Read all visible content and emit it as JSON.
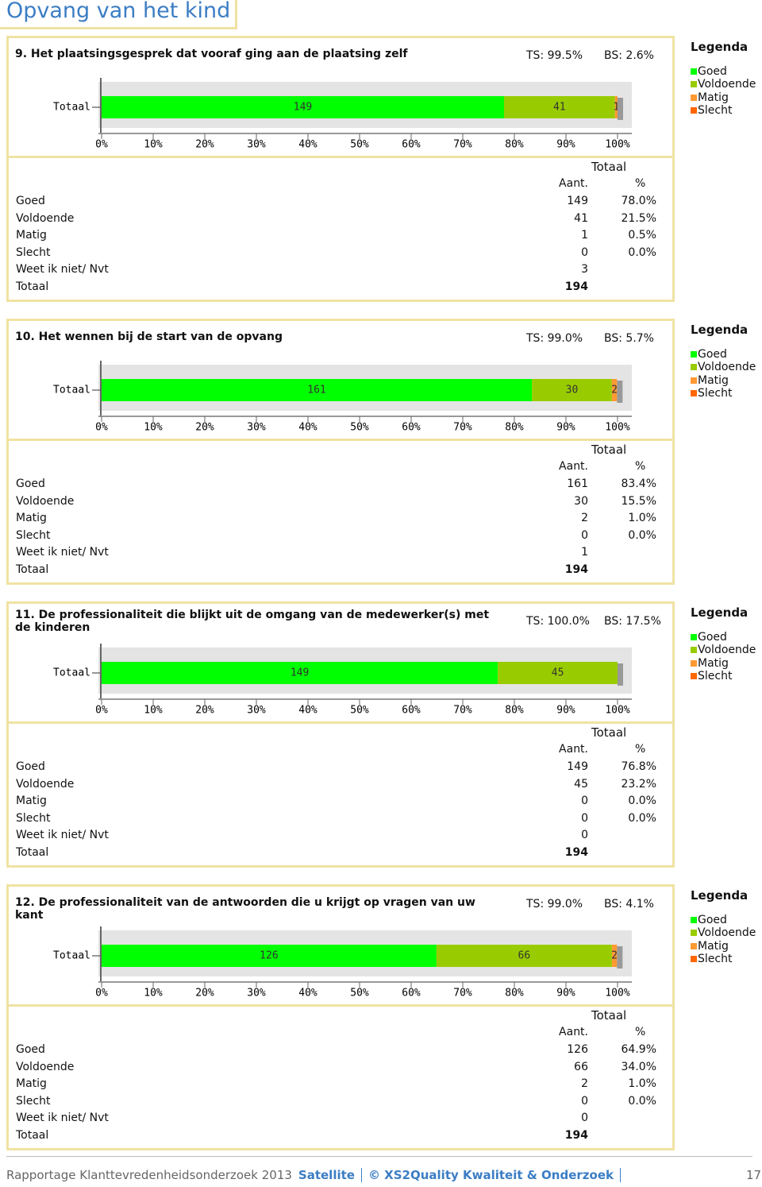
{
  "header": {
    "title": "Opvang van het kind"
  },
  "sections": [
    {
      "question": "9. Het plaatsingsgesprek dat vooraf ging aan de plaatsing zelf",
      "ts": "TS: 99.5%",
      "bs": "BS: 2.6%",
      "legend_title": "Legenda",
      "chart": {
        "type": "bar",
        "orientation": "horizontal",
        "stacked": true,
        "categories": [
          "Totaal"
        ],
        "series": [
          {
            "name": "Goed",
            "color": "#00ff00",
            "values": [
              78.0
            ]
          },
          {
            "name": "Voldoende",
            "color": "#99cc00",
            "values": [
              21.5
            ]
          },
          {
            "name": "Matig",
            "color": "#ff9933",
            "values": [
              0.5
            ]
          },
          {
            "name": "Slecht",
            "color": "#ff6600",
            "values": [
              0.0
            ]
          }
        ],
        "xlim": [
          0,
          100
        ],
        "xticks": [
          {
            "value": 0,
            "label": "0%"
          },
          {
            "value": 10,
            "label": "10%"
          },
          {
            "value": 20,
            "label": "20%"
          },
          {
            "value": 30,
            "label": "30%"
          },
          {
            "value": 40,
            "label": "40%"
          },
          {
            "value": 50,
            "label": "50%"
          },
          {
            "value": 60,
            "label": "60%"
          },
          {
            "value": 70,
            "label": "70%"
          },
          {
            "value": 80,
            "label": "80%"
          },
          {
            "value": 90,
            "label": "90%"
          },
          {
            "value": 100,
            "label": "100%"
          }
        ]
      },
      "table": {
        "group": "Totaal",
        "columns": [
          "Aant.",
          "%"
        ],
        "rows": [
          [
            "Goed",
            149,
            "78.0%"
          ],
          [
            "Voldoende",
            41,
            "21.5%"
          ],
          [
            "Matig",
            1,
            "0.5%"
          ],
          [
            "Slecht",
            0,
            "0.0%"
          ],
          [
            "Weet ik niet/ Nvt",
            3
          ],
          [
            "Totaal",
            194
          ]
        ]
      }
    },
    {
      "question": "10. Het wennen bij de start van de opvang",
      "ts": "TS: 99.0%",
      "bs": "BS: 5.7%",
      "legend_title": "Legenda",
      "chart": {
        "type": "bar",
        "orientation": "horizontal",
        "stacked": true,
        "categories": [
          "Totaal"
        ],
        "series": [
          {
            "name": "Goed",
            "color": "#00ff00",
            "values": [
              83.4
            ]
          },
          {
            "name": "Voldoende",
            "color": "#99cc00",
            "values": [
              15.5
            ]
          },
          {
            "name": "Matig",
            "color": "#ff9933",
            "values": [
              1.0
            ]
          },
          {
            "name": "Slecht",
            "color": "#ff6600",
            "values": [
              0.0
            ]
          }
        ],
        "xlim": [
          0,
          100
        ],
        "xticks": [
          {
            "value": 0,
            "label": "0%"
          },
          {
            "value": 10,
            "label": "10%"
          },
          {
            "value": 20,
            "label": "20%"
          },
          {
            "value": 30,
            "label": "30%"
          },
          {
            "value": 40,
            "label": "40%"
          },
          {
            "value": 50,
            "label": "50%"
          },
          {
            "value": 60,
            "label": "60%"
          },
          {
            "value": 70,
            "label": "70%"
          },
          {
            "value": 80,
            "label": "80%"
          },
          {
            "value": 90,
            "label": "90%"
          },
          {
            "value": 100,
            "label": "100%"
          }
        ]
      },
      "table": {
        "group": "Totaal",
        "columns": [
          "Aant.",
          "%"
        ],
        "rows": [
          [
            "Goed",
            161,
            "83.4%"
          ],
          [
            "Voldoende",
            30,
            "15.5%"
          ],
          [
            "Matig",
            2,
            "1.0%"
          ],
          [
            "Slecht",
            0,
            "0.0%"
          ],
          [
            "Weet ik niet/ Nvt",
            1
          ],
          [
            "Totaal",
            194
          ]
        ]
      }
    },
    {
      "question": "11. De professionaliteit die blijkt uit de omgang van de medewerker(s) met de kinderen",
      "ts": "TS: 100.0%",
      "bs": "BS: 17.5%",
      "legend_title": "Legenda",
      "chart": {
        "type": "bar",
        "orientation": "horizontal",
        "stacked": true,
        "categories": [
          "Totaal"
        ],
        "series": [
          {
            "name": "Goed",
            "color": "#00ff00",
            "values": [
              76.8
            ]
          },
          {
            "name": "Voldoende",
            "color": "#99cc00",
            "values": [
              23.2
            ]
          },
          {
            "name": "Matig",
            "color": "#ff9933",
            "values": [
              0.0
            ]
          },
          {
            "name": "Slecht",
            "color": "#ff6600",
            "values": [
              0.0
            ]
          }
        ],
        "xlim": [
          0,
          100
        ],
        "xticks": [
          {
            "value": 0,
            "label": "0%"
          },
          {
            "value": 10,
            "label": "10%"
          },
          {
            "value": 20,
            "label": "20%"
          },
          {
            "value": 30,
            "label": "30%"
          },
          {
            "value": 40,
            "label": "40%"
          },
          {
            "value": 50,
            "label": "50%"
          },
          {
            "value": 60,
            "label": "60%"
          },
          {
            "value": 70,
            "label": "70%"
          },
          {
            "value": 80,
            "label": "80%"
          },
          {
            "value": 90,
            "label": "90%"
          },
          {
            "value": 100,
            "label": "100%"
          }
        ]
      },
      "table": {
        "group": "Totaal",
        "columns": [
          "Aant.",
          "%"
        ],
        "rows": [
          [
            "Goed",
            149,
            "76.8%"
          ],
          [
            "Voldoende",
            45,
            "23.2%"
          ],
          [
            "Matig",
            0,
            "0.0%"
          ],
          [
            "Slecht",
            0,
            "0.0%"
          ],
          [
            "Weet ik niet/ Nvt",
            0
          ],
          [
            "Totaal",
            194
          ]
        ]
      }
    },
    {
      "question": "12. De professionaliteit van de antwoorden die u krijgt op vragen van uw kant",
      "ts": "TS: 99.0%",
      "bs": "BS: 4.1%",
      "legend_title": "Legenda",
      "chart": {
        "type": "bar",
        "orientation": "horizontal",
        "stacked": true,
        "categories": [
          "Totaal"
        ],
        "series": [
          {
            "name": "Goed",
            "color": "#00ff00",
            "values": [
              64.9
            ]
          },
          {
            "name": "Voldoende",
            "color": "#99cc00",
            "values": [
              34.0
            ]
          },
          {
            "name": "Matig",
            "color": "#ff9933",
            "values": [
              1.0
            ]
          },
          {
            "name": "Slecht",
            "color": "#ff6600",
            "values": [
              0.0
            ]
          }
        ],
        "xlim": [
          0,
          100
        ],
        "xticks": [
          {
            "value": 0,
            "label": "0%"
          },
          {
            "value": 10,
            "label": "10%"
          },
          {
            "value": 20,
            "label": "20%"
          },
          {
            "value": 30,
            "label": "30%"
          },
          {
            "value": 40,
            "label": "40%"
          },
          {
            "value": 50,
            "label": "50%"
          },
          {
            "value": 60,
            "label": "60%"
          },
          {
            "value": 70,
            "label": "70%"
          },
          {
            "value": 80,
            "label": "80%"
          },
          {
            "value": 90,
            "label": "90%"
          },
          {
            "value": 100,
            "label": "100%"
          }
        ]
      },
      "table": {
        "group": "Totaal",
        "columns": [
          "Aant.",
          "%"
        ],
        "rows": [
          [
            "Goed",
            126,
            "64.9%"
          ],
          [
            "Voldoende",
            66,
            "34.0%"
          ],
          [
            "Matig",
            2,
            "1.0%"
          ],
          [
            "Slecht",
            0,
            "0.0%"
          ],
          [
            "Weet ik niet/ Nvt",
            0
          ],
          [
            "Totaal",
            194
          ]
        ]
      }
    }
  ],
  "footer": {
    "report": "Rapportage Klanttevredenheidsonderzoek 2013",
    "product": "Satellite",
    "company": "© XS2Quality Kwaliteit & Onderzoek",
    "page": "17"
  }
}
